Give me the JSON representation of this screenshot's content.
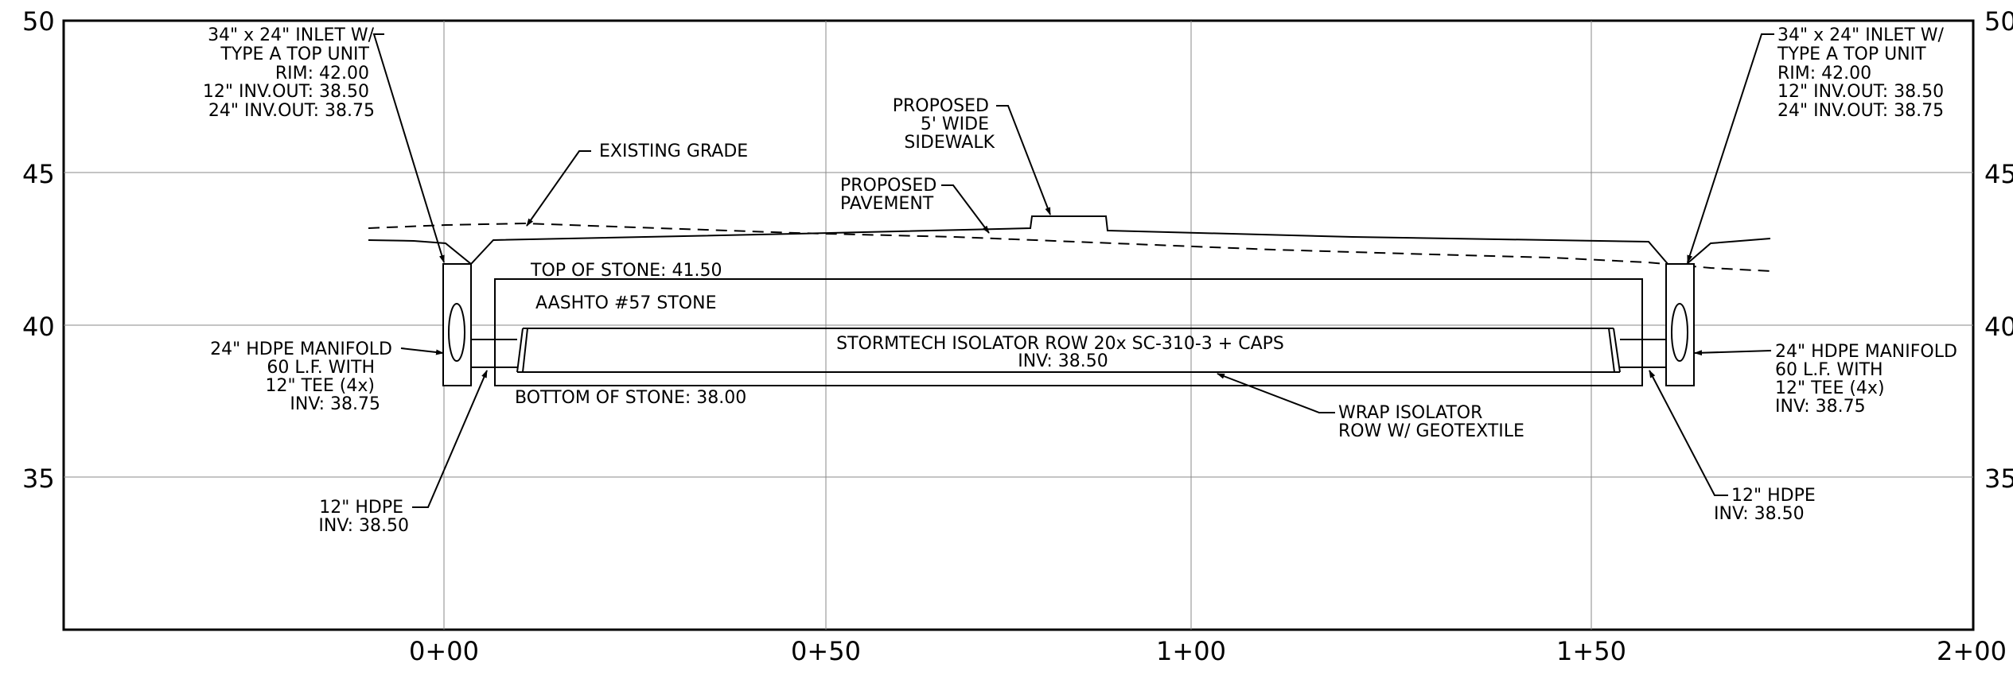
{
  "axes": {
    "elevation_ticks": [
      "50",
      "45",
      "40",
      "35"
    ],
    "station_ticks": [
      "0+00",
      "0+50",
      "1+00",
      "1+50",
      "2+00"
    ]
  },
  "notes": {
    "inlet_left": [
      "34\" x 24\" INLET W/",
      "TYPE A TOP UNIT",
      "RIM: 42.00",
      "12\" INV.OUT: 38.50",
      "24\" INV.OUT: 38.75"
    ],
    "inlet_right": [
      "34\" x 24\" INLET W/",
      "TYPE A TOP UNIT",
      "RIM: 42.00",
      "12\" INV.OUT: 38.50",
      "24\" INV.OUT: 38.75"
    ],
    "existing_grade": "EXISTING GRADE",
    "sidewalk": [
      "PROPOSED",
      "5' WIDE",
      "SIDEWALK"
    ],
    "pavement": [
      "PROPOSED",
      "PAVEMENT"
    ],
    "top_of_stone": "TOP OF STONE: 41.50",
    "stone_type": "AASHTO #57 STONE",
    "isolator_row": [
      "STORMTECH ISOLATOR ROW 20x SC-310-3 + CAPS",
      "INV: 38.50"
    ],
    "bottom_of_stone": "BOTTOM OF STONE: 38.00",
    "geotextile": [
      "WRAP ISOLATOR",
      "ROW W/ GEOTEXTILE"
    ],
    "manifold_left": [
      "24\" HDPE MANIFOLD",
      "60 L.F. WITH",
      "12\" TEE (4x)",
      "INV: 38.75"
    ],
    "manifold_right": [
      "24\" HDPE MANIFOLD",
      "60 L.F. WITH",
      "12\" TEE (4x)",
      "INV: 38.75"
    ],
    "hdpe_left": [
      "12\" HDPE",
      "INV: 38.50"
    ],
    "hdpe_right": [
      "12\" HDPE",
      "INV: 38.50"
    ]
  }
}
